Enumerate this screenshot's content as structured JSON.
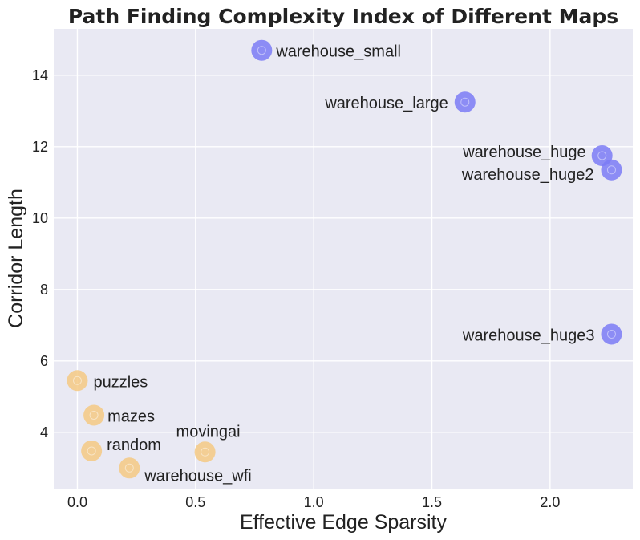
{
  "chart_data": {
    "type": "scatter",
    "title": "Path Finding Complexity Index of Different Maps",
    "xlabel": "Effective Edge Sparsity",
    "ylabel": "Corridor Length",
    "xlim": [
      -0.1,
      2.35
    ],
    "ylim": [
      2.4,
      15.3
    ],
    "xticks": [
      0.0,
      0.5,
      1.0,
      1.5,
      2.0
    ],
    "xtick_labels": [
      "0.0",
      "0.5",
      "1.0",
      "1.5",
      "2.0"
    ],
    "yticks": [
      4,
      6,
      8,
      10,
      12,
      14
    ],
    "ytick_labels": [
      "4",
      "6",
      "8",
      "10",
      "12",
      "14"
    ],
    "grid": true,
    "colors": {
      "warehouse": "#7b7bf5",
      "other": "#f5c983",
      "background": "#e9e9f3"
    },
    "points": [
      {
        "name": "warehouse_small",
        "x": 0.78,
        "y": 14.7,
        "group": "warehouse"
      },
      {
        "name": "warehouse_large",
        "x": 1.64,
        "y": 13.25,
        "group": "warehouse"
      },
      {
        "name": "warehouse_huge",
        "x": 2.22,
        "y": 11.75,
        "group": "warehouse"
      },
      {
        "name": "warehouse_huge2",
        "x": 2.26,
        "y": 11.35,
        "group": "warehouse"
      },
      {
        "name": "warehouse_huge3",
        "x": 2.26,
        "y": 6.75,
        "group": "warehouse"
      },
      {
        "name": "puzzles",
        "x": 0.0,
        "y": 5.45,
        "group": "other"
      },
      {
        "name": "mazes",
        "x": 0.07,
        "y": 4.48,
        "group": "other"
      },
      {
        "name": "random",
        "x": 0.06,
        "y": 3.48,
        "group": "other"
      },
      {
        "name": "movingai",
        "x": 0.54,
        "y": 3.45,
        "group": "other"
      },
      {
        "name": "warehouse_wfi",
        "x": 0.22,
        "y": 3.0,
        "group": "other"
      }
    ]
  }
}
